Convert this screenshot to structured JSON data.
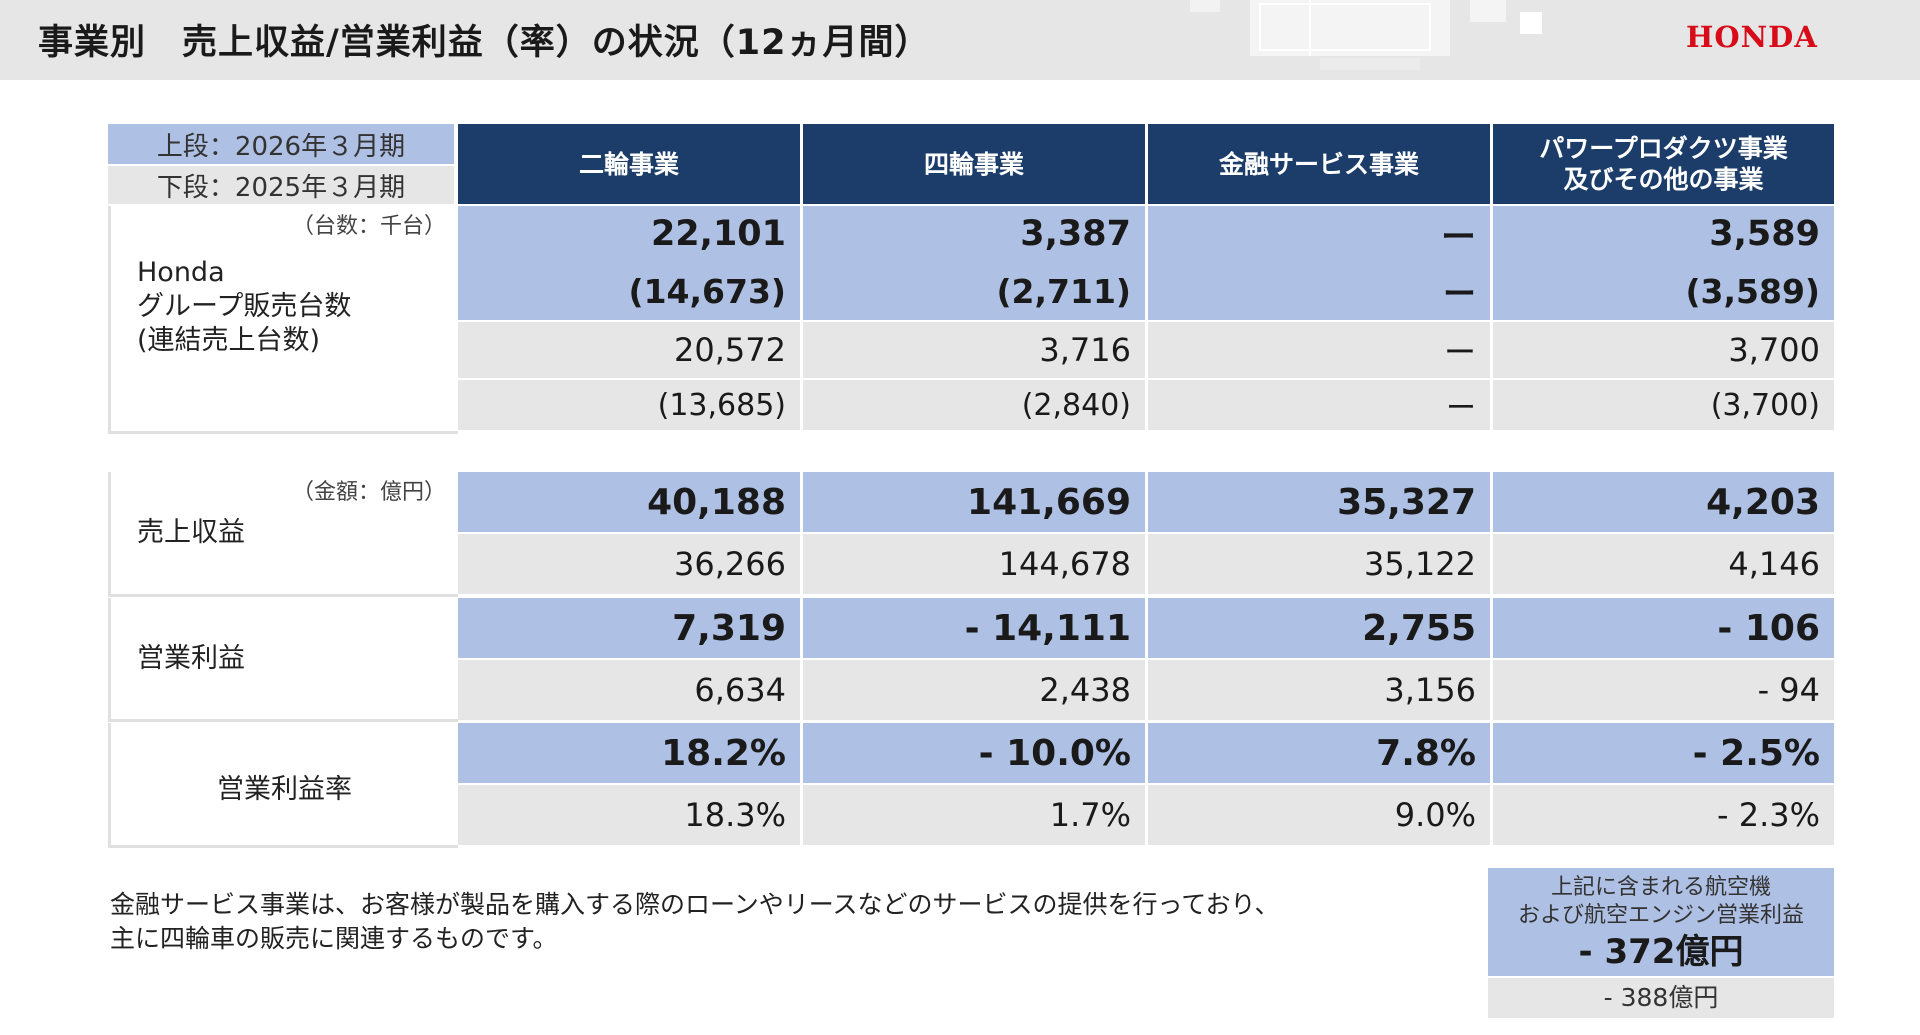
{
  "header": {
    "title": "事業別　売上収益/営業利益（率）の状況（12ヵ月間）",
    "logo_text": "HONDA",
    "logo_color": "#d80c18"
  },
  "legend": {
    "current_label": "上段：2026年３月期",
    "previous_label": "下段：2025年３月期"
  },
  "columns": [
    {
      "label": [
        "二輪事業"
      ]
    },
    {
      "label": [
        "四輪事業"
      ]
    },
    {
      "label": [
        "金融サービス事業"
      ]
    },
    {
      "label": [
        "パワープロダクツ事業",
        "及びその他の事業"
      ]
    }
  ],
  "units": {
    "count": "（台数：千台）",
    "amount": "（金額：億円）"
  },
  "table1": {
    "label": [
      "Honda",
      "グループ販売台数",
      "(連結売上台数)"
    ],
    "rows": [
      {
        "type": "current",
        "values": [
          "22,101",
          "3,387",
          "ー",
          "3,589"
        ]
      },
      {
        "type": "current",
        "values": [
          "(14,673)",
          "(2,711)",
          "ー",
          "(3,589)"
        ]
      },
      {
        "type": "previous",
        "values": [
          "20,572",
          "3,716",
          "ー",
          "3,700"
        ]
      },
      {
        "type": "previous",
        "values": [
          "(13,685)",
          "(2,840)",
          "ー",
          "(3,700)"
        ]
      }
    ]
  },
  "table2": {
    "groups": [
      {
        "label": "売上収益",
        "current": [
          "40,188",
          "141,669",
          "35,327",
          "4,203"
        ],
        "previous": [
          "36,266",
          "144,678",
          "35,122",
          "4,146"
        ]
      },
      {
        "label": "営業利益",
        "current": [
          "7,319",
          "- 14,111",
          "2,755",
          "- 106"
        ],
        "previous": [
          "6,634",
          "2,438",
          "3,156",
          "- 94"
        ]
      },
      {
        "label": "営業利益率",
        "current": [
          "18.2%",
          "- 10.0%",
          "7.8%",
          "- 2.5%"
        ],
        "previous": [
          "18.3%",
          "1.7%",
          "9.0%",
          "- 2.3%"
        ]
      }
    ]
  },
  "footnote": [
    "金融サービス事業は、お客様が製品を購入する際のローンやリースなどのサービスの提供を行っており、",
    "主に四輪車の販売に関連するものです。"
  ],
  "aviation": {
    "caption": [
      "上記に含まれる航空機",
      "および航空エンジン営業利益"
    ],
    "current": "- 372億円",
    "previous": "- 388億円"
  },
  "colors": {
    "header_navy": "#1c3d6a",
    "current_blue": "#aec0e4",
    "previous_gray": "#e6e6e6"
  }
}
